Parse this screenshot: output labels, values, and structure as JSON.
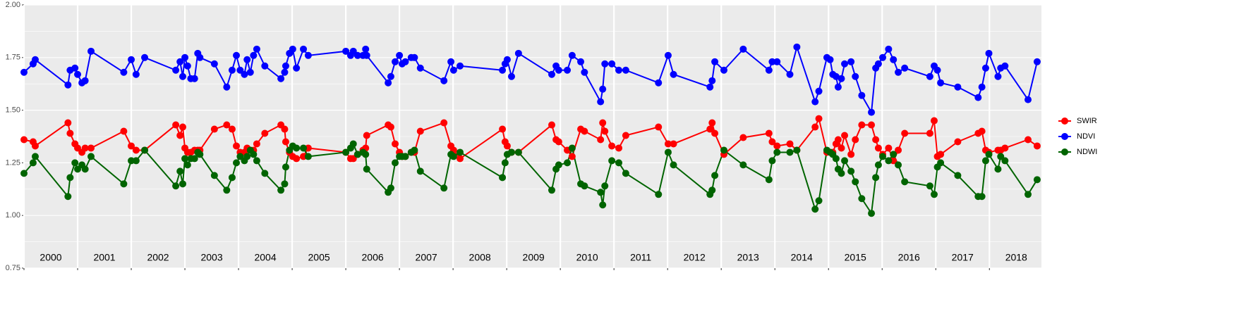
{
  "chart_data": {
    "type": "line",
    "x": [
      2000.0,
      2000.17,
      2000.21,
      2000.82,
      2000.86,
      2000.95,
      2001.0,
      2001.08,
      2001.14,
      2001.25,
      2001.86,
      2002.0,
      2002.09,
      2002.25,
      2002.83,
      2002.91,
      2002.96,
      2003.0,
      2003.05,
      2003.11,
      2003.18,
      2003.24,
      2003.28,
      2003.55,
      2003.78,
      2003.88,
      2003.96,
      2004.03,
      2004.11,
      2004.16,
      2004.22,
      2004.28,
      2004.34,
      2004.49,
      2004.79,
      2004.86,
      2004.88,
      2004.95,
      2005.01,
      2005.08,
      2005.21,
      2005.3,
      2006.0,
      2006.09,
      2006.14,
      2006.22,
      2006.32,
      2006.37,
      2006.39,
      2006.79,
      2006.84,
      2006.92,
      2007.0,
      2007.05,
      2007.11,
      2007.22,
      2007.28,
      2007.39,
      2007.83,
      2007.96,
      2008.01,
      2008.13,
      2008.92,
      2008.97,
      2009.01,
      2009.09,
      2009.22,
      2009.84,
      2009.92,
      2009.97,
      2010.13,
      2010.22,
      2010.38,
      2010.45,
      2010.75,
      2010.79,
      2010.83,
      2010.96,
      2011.09,
      2011.22,
      2011.83,
      2012.01,
      2012.11,
      2012.79,
      2012.83,
      2012.88,
      2013.05,
      2013.41,
      2013.89,
      2013.95,
      2014.04,
      2014.28,
      2014.41,
      2014.75,
      2014.82,
      2014.97,
      2015.03,
      2015.08,
      2015.14,
      2015.18,
      2015.24,
      2015.3,
      2015.42,
      2015.5,
      2015.62,
      2015.8,
      2015.88,
      2015.93,
      2016.01,
      2016.12,
      2016.21,
      2016.3,
      2016.42,
      2016.89,
      2016.97,
      2017.03,
      2017.09,
      2017.41,
      2017.79,
      2017.86,
      2017.93,
      2017.99,
      2018.16,
      2018.21,
      2018.29,
      2018.72,
      2018.89
    ],
    "series": [
      {
        "name": "SWIR",
        "color": "#ff0000",
        "values": [
          1.36,
          1.35,
          1.33,
          1.44,
          1.39,
          1.34,
          1.32,
          1.3,
          1.32,
          1.32,
          1.4,
          1.33,
          1.31,
          1.31,
          1.43,
          1.38,
          1.42,
          1.32,
          1.3,
          1.3,
          1.31,
          1.31,
          1.31,
          1.41,
          1.43,
          1.41,
          1.33,
          1.3,
          1.3,
          1.32,
          1.31,
          1.31,
          1.34,
          1.39,
          1.43,
          1.41,
          1.35,
          1.3,
          1.28,
          1.27,
          1.28,
          1.32,
          1.3,
          1.27,
          1.27,
          1.29,
          1.31,
          1.32,
          1.38,
          1.43,
          1.42,
          1.34,
          1.3,
          1.28,
          1.28,
          1.3,
          1.3,
          1.4,
          1.44,
          1.33,
          1.31,
          1.27,
          1.41,
          1.35,
          1.33,
          1.3,
          1.3,
          1.43,
          1.36,
          1.35,
          1.31,
          1.28,
          1.41,
          1.4,
          1.36,
          1.44,
          1.4,
          1.33,
          1.32,
          1.38,
          1.42,
          1.34,
          1.34,
          1.41,
          1.44,
          1.39,
          1.29,
          1.37,
          1.39,
          1.35,
          1.33,
          1.34,
          1.31,
          1.42,
          1.46,
          1.3,
          1.3,
          1.3,
          1.34,
          1.36,
          1.32,
          1.38,
          1.29,
          1.36,
          1.43,
          1.43,
          1.36,
          1.32,
          1.29,
          1.32,
          1.26,
          1.31,
          1.39,
          1.39,
          1.45,
          1.28,
          1.29,
          1.35,
          1.39,
          1.4,
          1.31,
          1.3,
          1.31,
          1.31,
          1.32,
          1.36,
          1.33
        ]
      },
      {
        "name": "NDVI",
        "color": "#0000ff",
        "values": [
          1.68,
          1.72,
          1.74,
          1.62,
          1.69,
          1.7,
          1.67,
          1.63,
          1.64,
          1.78,
          1.68,
          1.74,
          1.67,
          1.75,
          1.69,
          1.73,
          1.66,
          1.75,
          1.71,
          1.65,
          1.65,
          1.77,
          1.75,
          1.72,
          1.61,
          1.69,
          1.76,
          1.69,
          1.67,
          1.74,
          1.68,
          1.76,
          1.79,
          1.71,
          1.65,
          1.68,
          1.71,
          1.77,
          1.79,
          1.7,
          1.79,
          1.76,
          1.78,
          1.76,
          1.78,
          1.76,
          1.76,
          1.79,
          1.76,
          1.63,
          1.66,
          1.73,
          1.76,
          1.72,
          1.73,
          1.75,
          1.75,
          1.7,
          1.64,
          1.73,
          1.69,
          1.71,
          1.69,
          1.72,
          1.74,
          1.66,
          1.77,
          1.67,
          1.71,
          1.69,
          1.69,
          1.76,
          1.73,
          1.68,
          1.54,
          1.6,
          1.72,
          1.72,
          1.69,
          1.69,
          1.63,
          1.76,
          1.67,
          1.61,
          1.64,
          1.73,
          1.69,
          1.79,
          1.69,
          1.73,
          1.73,
          1.67,
          1.8,
          1.54,
          1.59,
          1.75,
          1.74,
          1.67,
          1.66,
          1.61,
          1.65,
          1.72,
          1.73,
          1.66,
          1.57,
          1.49,
          1.7,
          1.72,
          1.75,
          1.79,
          1.74,
          1.68,
          1.7,
          1.66,
          1.71,
          1.69,
          1.63,
          1.61,
          1.56,
          1.61,
          1.7,
          1.77,
          1.66,
          1.7,
          1.71,
          1.55,
          1.73
        ]
      },
      {
        "name": "NDWI",
        "color": "#006400",
        "values": [
          1.2,
          1.25,
          1.28,
          1.09,
          1.18,
          1.25,
          1.22,
          1.24,
          1.22,
          1.28,
          1.15,
          1.26,
          1.26,
          1.31,
          1.14,
          1.21,
          1.15,
          1.27,
          1.24,
          1.27,
          1.27,
          1.3,
          1.29,
          1.19,
          1.12,
          1.18,
          1.25,
          1.28,
          1.26,
          1.28,
          1.31,
          1.29,
          1.26,
          1.2,
          1.12,
          1.15,
          1.23,
          1.31,
          1.33,
          1.32,
          1.32,
          1.28,
          1.3,
          1.32,
          1.34,
          1.29,
          1.3,
          1.29,
          1.22,
          1.11,
          1.13,
          1.25,
          1.28,
          1.28,
          1.28,
          1.3,
          1.31,
          1.21,
          1.13,
          1.29,
          1.28,
          1.3,
          1.18,
          1.25,
          1.29,
          1.3,
          1.3,
          1.12,
          1.22,
          1.24,
          1.25,
          1.32,
          1.15,
          1.14,
          1.11,
          1.05,
          1.14,
          1.26,
          1.25,
          1.2,
          1.1,
          1.3,
          1.24,
          1.1,
          1.12,
          1.19,
          1.31,
          1.24,
          1.17,
          1.26,
          1.3,
          1.3,
          1.31,
          1.03,
          1.07,
          1.31,
          1.3,
          1.29,
          1.27,
          1.22,
          1.2,
          1.26,
          1.21,
          1.16,
          1.08,
          1.01,
          1.18,
          1.24,
          1.28,
          1.26,
          1.29,
          1.24,
          1.16,
          1.14,
          1.1,
          1.23,
          1.25,
          1.19,
          1.09,
          1.09,
          1.26,
          1.29,
          1.22,
          1.28,
          1.26,
          1.1,
          1.17
        ]
      }
    ],
    "xlim": [
      2000,
      2018.97
    ],
    "xticks": [
      {
        "value": 2000,
        "label": "2000"
      },
      {
        "value": 2001,
        "label": "2001"
      },
      {
        "value": 2002,
        "label": "2002"
      },
      {
        "value": 2003,
        "label": "2003"
      },
      {
        "value": 2004,
        "label": "2004"
      },
      {
        "value": 2005,
        "label": "2005"
      },
      {
        "value": 2006,
        "label": "2006"
      },
      {
        "value": 2007,
        "label": "2007"
      },
      {
        "value": 2008,
        "label": "2008"
      },
      {
        "value": 2009,
        "label": "2009"
      },
      {
        "value": 2010,
        "label": "2010"
      },
      {
        "value": 2011,
        "label": "2011"
      },
      {
        "value": 2012,
        "label": "2012"
      },
      {
        "value": 2013,
        "label": "2013"
      },
      {
        "value": 2014,
        "label": "2014"
      },
      {
        "value": 2015,
        "label": "2015"
      },
      {
        "value": 2016,
        "label": "2016"
      },
      {
        "value": 2017,
        "label": "2017"
      },
      {
        "value": 2018,
        "label": "2018"
      }
    ],
    "ylim": [
      0.75,
      2.0
    ],
    "yticks": [
      {
        "value": 0.75,
        "label": "0.75"
      },
      {
        "value": 1.0,
        "label": "1.00"
      },
      {
        "value": 1.25,
        "label": "1.25"
      },
      {
        "value": 1.5,
        "label": "1.50"
      },
      {
        "value": 1.75,
        "label": "1.75"
      },
      {
        "value": 2.0,
        "label": "2.00"
      }
    ],
    "grid": true,
    "legend": "right"
  }
}
